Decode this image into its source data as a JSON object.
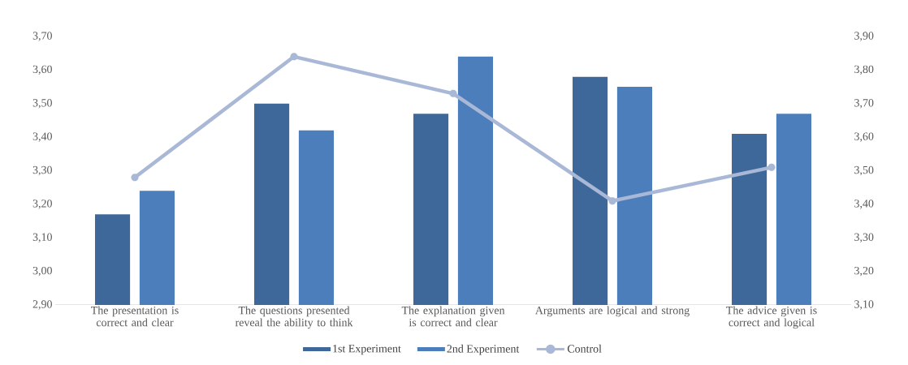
{
  "chart_data": {
    "type": "bar",
    "categories": [
      "The presentation is correct and clear",
      "The questions presented reveal the ability to think",
      "The explanation given is correct and clear",
      "Arguments are logical and strong",
      "The advice given is correct and logical"
    ],
    "series": [
      {
        "name": "1st Experiment",
        "color": "#3e6899",
        "values": [
          3.17,
          3.5,
          3.47,
          3.58,
          3.41
        ]
      },
      {
        "name": "2nd Experiment",
        "color": "#4c7ebb",
        "values": [
          3.24,
          3.42,
          3.64,
          3.55,
          3.47
        ]
      },
      {
        "name": "Control",
        "type": "line",
        "axis": "y2",
        "color": "#a9b8d6",
        "marker": "circle",
        "line_style": "solid",
        "values": [
          3.48,
          3.84,
          3.73,
          3.41,
          3.51
        ]
      }
    ],
    "ylim": [
      2.9,
      3.7
    ],
    "yticks": [
      {
        "value": 2.9,
        "label": "2,90"
      },
      {
        "value": 3.0,
        "label": "3,00"
      },
      {
        "value": 3.1,
        "label": "3,10"
      },
      {
        "value": 3.2,
        "label": "3,20"
      },
      {
        "value": 3.3,
        "label": "3,30"
      },
      {
        "value": 3.4,
        "label": "3,40"
      },
      {
        "value": 3.5,
        "label": "3,50"
      },
      {
        "value": 3.6,
        "label": "3,60"
      },
      {
        "value": 3.7,
        "label": "3,70"
      }
    ],
    "y2lim": [
      3.1,
      3.9
    ],
    "y2ticks": [
      {
        "value": 3.1,
        "label": "3,10"
      },
      {
        "value": 3.2,
        "label": "3,20"
      },
      {
        "value": 3.3,
        "label": "3,30"
      },
      {
        "value": 3.4,
        "label": "3,40"
      },
      {
        "value": 3.5,
        "label": "3,50"
      },
      {
        "value": 3.6,
        "label": "3,60"
      },
      {
        "value": 3.7,
        "label": "3,70"
      },
      {
        "value": 3.8,
        "label": "3,80"
      },
      {
        "value": 3.9,
        "label": "3,90"
      }
    ],
    "grid": false,
    "legend": "bottom"
  }
}
